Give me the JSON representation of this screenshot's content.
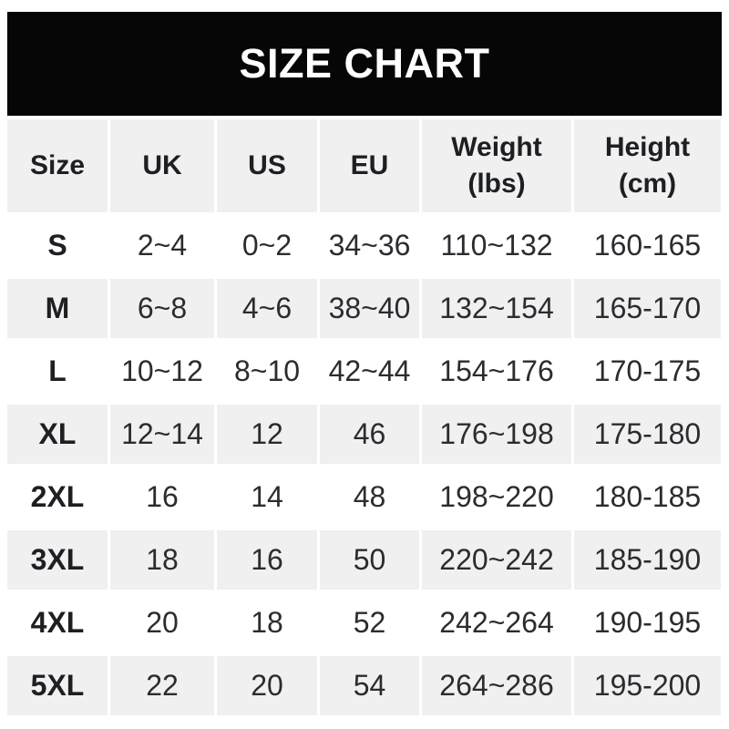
{
  "title_bar": {
    "title": "SIZE CHART"
  },
  "colors": {
    "title_bar_bg": "#060606",
    "title_text": "#ffffff",
    "alt_row_bg": "#f0f0f1",
    "text": "#1d1f22",
    "page_bg": "#ffffff"
  },
  "header": {
    "size": "Size",
    "uk": "UK",
    "us": "US",
    "eu": "EU",
    "weight": "Weight",
    "weight_sub": "(lbs)",
    "height": "Height",
    "height_sub": "(cm)"
  },
  "chart_data": {
    "type": "table",
    "title": "SIZE CHART",
    "columns": [
      "Size",
      "UK",
      "US",
      "EU",
      "Weight (lbs)",
      "Height (cm)"
    ],
    "rows": [
      [
        "S",
        "2~4",
        "0~2",
        "34~36",
        "110~132",
        "160-165"
      ],
      [
        "M",
        "6~8",
        "4~6",
        "38~40",
        "132~154",
        "165-170"
      ],
      [
        "L",
        "10~12",
        "8~10",
        "42~44",
        "154~176",
        "170-175"
      ],
      [
        "XL",
        "12~14",
        "12",
        "46",
        "176~198",
        "175-180"
      ],
      [
        "2XL",
        "16",
        "14",
        "48",
        "198~220",
        "180-185"
      ],
      [
        "3XL",
        "18",
        "16",
        "50",
        "220~242",
        "185-190"
      ],
      [
        "4XL",
        "20",
        "18",
        "52",
        "242~264",
        "190-195"
      ],
      [
        "5XL",
        "22",
        "20",
        "54",
        "264~286",
        "195-200"
      ]
    ]
  }
}
